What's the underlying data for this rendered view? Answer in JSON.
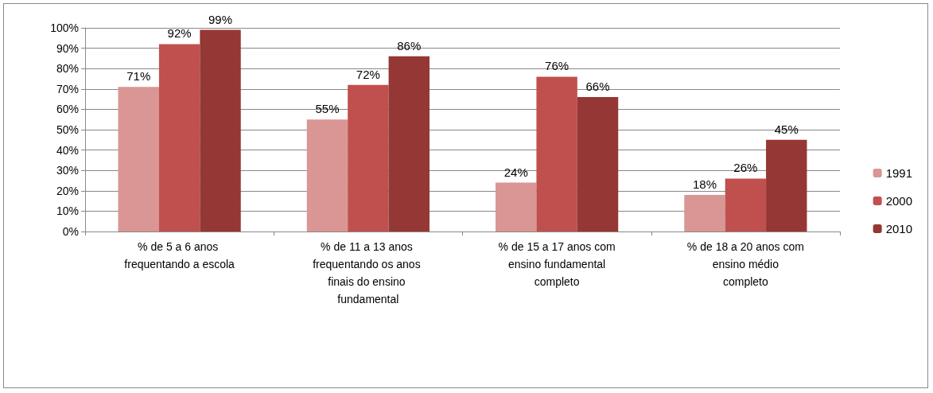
{
  "chart_data": {
    "type": "bar",
    "categories": [
      "% de 5 a 6 anos frequentando a escola",
      "% de 11 a 13 anos frequentando os anos finais do ensino fundamental",
      "% de 15 a 17 anos com ensino fundamental completo",
      "% de 18 a 20 anos com ensino médio completo"
    ],
    "series": [
      {
        "name": "1991",
        "color": "#d99694",
        "values": [
          71,
          55,
          24,
          18
        ],
        "value_labels": [
          "71%",
          "55%",
          "24%",
          "18%"
        ]
      },
      {
        "name": "2000",
        "color": "#c0504d",
        "values": [
          92,
          72,
          76,
          26
        ],
        "value_labels": [
          "92%",
          "72%",
          "76%",
          "26%"
        ]
      },
      {
        "name": "2010",
        "color": "#953735",
        "values": [
          99,
          86,
          66,
          45
        ],
        "value_labels": [
          "99%",
          "86%",
          "66%",
          "45%"
        ]
      }
    ],
    "ylim": [
      0,
      100
    ],
    "yticks": [
      {
        "value": 0,
        "label": "0%"
      },
      {
        "value": 10,
        "label": "10%"
      },
      {
        "value": 20,
        "label": "20%"
      },
      {
        "value": 30,
        "label": "30%"
      },
      {
        "value": 40,
        "label": "40%"
      },
      {
        "value": 50,
        "label": "50%"
      },
      {
        "value": 60,
        "label": "60%"
      },
      {
        "value": 70,
        "label": "70%"
      },
      {
        "value": 80,
        "label": "80%"
      },
      {
        "value": 90,
        "label": "90%"
      },
      {
        "value": 100,
        "label": "100%"
      }
    ],
    "grid": "y",
    "legend": "right"
  }
}
